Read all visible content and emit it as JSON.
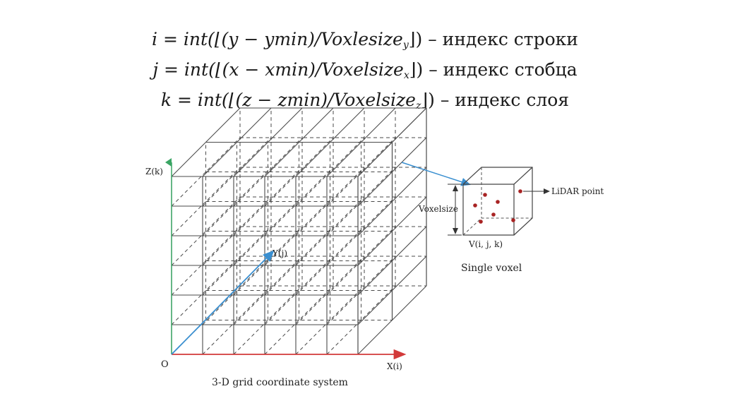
{
  "formulas": [
    {
      "lhs": "i",
      "expr": "int(⌊(y − ymin)/Voxlesize",
      "sub": "y",
      "close": "⌋)",
      "desc": "– индекс строки"
    },
    {
      "lhs": "j",
      "expr": "int(⌊(x − xmin)/Voxelsize",
      "sub": "x",
      "close": "⌋)",
      "desc": "– индекс стобца"
    },
    {
      "lhs": "k",
      "expr": "int(⌊(z − zmin)/Voxelsize",
      "sub": "z",
      "close": "⌋)",
      "desc": "– индекс слоя"
    }
  ],
  "grid": {
    "axis_z": "Z(k)",
    "axis_y": "Y(j)",
    "axis_x": "X(i)",
    "origin": "O",
    "caption": "3-D grid coordinate system",
    "cells_x": 6,
    "cells_z": 6,
    "cells_depth": 2
  },
  "voxel": {
    "size_label": "Voxelsize",
    "index_label": "V(i, j, k)",
    "point_label": "LiDAR point",
    "caption": "Single voxel"
  },
  "colors": {
    "grid_line": "#4a4a4a",
    "axis_z": "#3aa564",
    "axis_x": "#d23a3a",
    "axis_y": "#3a8fd0",
    "point": "#a82323"
  }
}
